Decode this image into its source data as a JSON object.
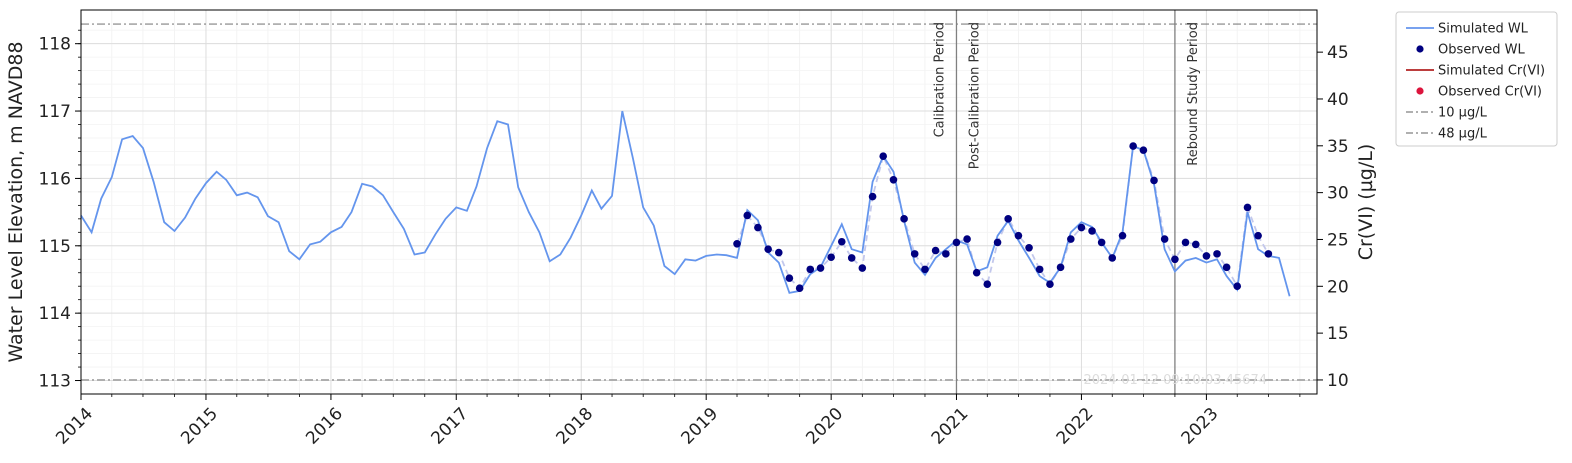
{
  "chart_data": {
    "type": "line",
    "y_left_label": "Water Level Elevation, m NAVD88",
    "y_right_label": "Cr(VI) (µg/L)",
    "x_range": [
      "2014-01-01",
      "2023-11-20"
    ],
    "x_ticks": [
      "2014",
      "2015",
      "2016",
      "2017",
      "2018",
      "2019",
      "2020",
      "2021",
      "2022",
      "2023"
    ],
    "y_left_range": [
      112.8,
      118.5
    ],
    "y_left_ticks": [
      "113",
      "114",
      "115",
      "116",
      "117",
      "118"
    ],
    "y_right_range": [
      8.5,
      49.5
    ],
    "y_right_ticks": [
      "10",
      "15",
      "20",
      "25",
      "30",
      "35",
      "40",
      "45"
    ],
    "grid": true,
    "legend_position": "outside-right",
    "series": [
      {
        "name": "Simulated WL",
        "kind": "line",
        "axis": "left",
        "color": "#6495ed",
        "points": [
          [
            "2014-01-01",
            115.45
          ],
          [
            "2014-02-01",
            115.2
          ],
          [
            "2014-03-01",
            115.7
          ],
          [
            "2014-04-01",
            116.02
          ],
          [
            "2014-05-01",
            116.58
          ],
          [
            "2014-06-01",
            116.63
          ],
          [
            "2014-07-01",
            116.45
          ],
          [
            "2014-08-01",
            115.95
          ],
          [
            "2014-09-01",
            115.35
          ],
          [
            "2014-10-01",
            115.22
          ],
          [
            "2014-11-01",
            115.42
          ],
          [
            "2014-12-01",
            115.7
          ],
          [
            "2015-01-01",
            115.93
          ],
          [
            "2015-02-01",
            116.1
          ],
          [
            "2015-03-01",
            115.98
          ],
          [
            "2015-04-01",
            115.75
          ],
          [
            "2015-05-01",
            115.79
          ],
          [
            "2015-06-01",
            115.72
          ],
          [
            "2015-07-01",
            115.44
          ],
          [
            "2015-08-01",
            115.35
          ],
          [
            "2015-09-01",
            114.92
          ],
          [
            "2015-10-01",
            114.8
          ],
          [
            "2015-11-01",
            115.02
          ],
          [
            "2015-12-01",
            115.06
          ],
          [
            "2016-01-01",
            115.2
          ],
          [
            "2016-02-01",
            115.28
          ],
          [
            "2016-03-01",
            115.5
          ],
          [
            "2016-04-01",
            115.92
          ],
          [
            "2016-05-01",
            115.88
          ],
          [
            "2016-06-01",
            115.75
          ],
          [
            "2016-07-01",
            115.5
          ],
          [
            "2016-08-01",
            115.25
          ],
          [
            "2016-09-01",
            114.87
          ],
          [
            "2016-10-01",
            114.9
          ],
          [
            "2016-11-01",
            115.17
          ],
          [
            "2016-12-01",
            115.4
          ],
          [
            "2017-01-01",
            115.57
          ],
          [
            "2017-02-01",
            115.52
          ],
          [
            "2017-03-01",
            115.88
          ],
          [
            "2017-04-01",
            116.45
          ],
          [
            "2017-05-01",
            116.85
          ],
          [
            "2017-06-01",
            116.8
          ],
          [
            "2017-07-01",
            115.87
          ],
          [
            "2017-08-01",
            115.5
          ],
          [
            "2017-09-01",
            115.2
          ],
          [
            "2017-10-01",
            114.77
          ],
          [
            "2017-11-01",
            114.87
          ],
          [
            "2017-12-01",
            115.12
          ],
          [
            "2018-01-01",
            115.45
          ],
          [
            "2018-02-01",
            115.82
          ],
          [
            "2018-03-01",
            115.55
          ],
          [
            "2018-04-01",
            115.74
          ],
          [
            "2018-05-01",
            117.0
          ],
          [
            "2018-06-01",
            116.3
          ],
          [
            "2018-07-01",
            115.57
          ],
          [
            "2018-08-01",
            115.3
          ],
          [
            "2018-09-01",
            114.7
          ],
          [
            "2018-10-01",
            114.58
          ],
          [
            "2018-11-01",
            114.8
          ],
          [
            "2018-12-01",
            114.78
          ],
          [
            "2019-01-01",
            114.85
          ],
          [
            "2019-02-01",
            114.87
          ],
          [
            "2019-03-01",
            114.86
          ],
          [
            "2019-04-01",
            114.82
          ],
          [
            "2019-05-01",
            115.53
          ],
          [
            "2019-06-01",
            115.38
          ],
          [
            "2019-07-01",
            114.9
          ],
          [
            "2019-08-01",
            114.75
          ],
          [
            "2019-09-01",
            114.3
          ],
          [
            "2019-10-01",
            114.33
          ],
          [
            "2019-11-01",
            114.58
          ],
          [
            "2019-12-01",
            114.68
          ],
          [
            "2020-01-01",
            115.0
          ],
          [
            "2020-02-01",
            115.32
          ],
          [
            "2020-03-01",
            114.95
          ],
          [
            "2020-04-01",
            114.9
          ],
          [
            "2020-05-01",
            115.95
          ],
          [
            "2020-06-01",
            116.33
          ],
          [
            "2020-07-01",
            116.1
          ],
          [
            "2020-08-01",
            115.37
          ],
          [
            "2020-09-01",
            114.75
          ],
          [
            "2020-10-01",
            114.57
          ],
          [
            "2020-11-01",
            114.82
          ],
          [
            "2020-12-01",
            114.95
          ],
          [
            "2021-01-01",
            115.08
          ],
          [
            "2021-02-01",
            115.02
          ],
          [
            "2021-03-01",
            114.62
          ],
          [
            "2021-04-01",
            114.68
          ],
          [
            "2021-05-01",
            115.15
          ],
          [
            "2021-06-01",
            115.37
          ],
          [
            "2021-07-01",
            115.08
          ],
          [
            "2021-08-01",
            114.82
          ],
          [
            "2021-09-01",
            114.55
          ],
          [
            "2021-10-01",
            114.45
          ],
          [
            "2021-11-01",
            114.68
          ],
          [
            "2021-12-01",
            115.2
          ],
          [
            "2022-01-01",
            115.35
          ],
          [
            "2022-02-01",
            115.28
          ],
          [
            "2022-03-01",
            115.05
          ],
          [
            "2022-04-01",
            114.82
          ],
          [
            "2022-05-01",
            115.2
          ],
          [
            "2022-06-01",
            116.48
          ],
          [
            "2022-07-01",
            116.42
          ],
          [
            "2022-08-01",
            115.92
          ],
          [
            "2022-09-01",
            114.95
          ],
          [
            "2022-10-01",
            114.62
          ],
          [
            "2022-11-01",
            114.78
          ],
          [
            "2022-12-01",
            114.82
          ],
          [
            "2023-01-01",
            114.75
          ],
          [
            "2023-02-01",
            114.8
          ],
          [
            "2023-03-01",
            114.55
          ],
          [
            "2023-04-01",
            114.35
          ],
          [
            "2023-05-01",
            115.5
          ],
          [
            "2023-06-01",
            114.95
          ],
          [
            "2023-07-01",
            114.85
          ],
          [
            "2023-08-01",
            114.82
          ],
          [
            "2023-09-01",
            114.25
          ]
        ]
      },
      {
        "name": "Observed WL",
        "kind": "scatter",
        "axis": "left",
        "color": "#000080",
        "points": [
          [
            "2019-04-01",
            115.03
          ],
          [
            "2019-05-01",
            115.45
          ],
          [
            "2019-06-01",
            115.27
          ],
          [
            "2019-07-01",
            114.95
          ],
          [
            "2019-08-01",
            114.9
          ],
          [
            "2019-09-01",
            114.52
          ],
          [
            "2019-10-01",
            114.37
          ],
          [
            "2019-11-01",
            114.65
          ],
          [
            "2019-12-01",
            114.67
          ],
          [
            "2020-01-01",
            114.83
          ],
          [
            "2020-02-01",
            115.06
          ],
          [
            "2020-03-01",
            114.82
          ],
          [
            "2020-04-01",
            114.67
          ],
          [
            "2020-05-01",
            115.73
          ],
          [
            "2020-06-01",
            116.33
          ],
          [
            "2020-07-01",
            115.98
          ],
          [
            "2020-08-01",
            115.4
          ],
          [
            "2020-09-01",
            114.88
          ],
          [
            "2020-10-01",
            114.65
          ],
          [
            "2020-11-01",
            114.93
          ],
          [
            "2020-12-01",
            114.88
          ],
          [
            "2021-01-01",
            115.05
          ],
          [
            "2021-02-01",
            115.1
          ],
          [
            "2021-03-01",
            114.6
          ],
          [
            "2021-04-01",
            114.43
          ],
          [
            "2021-05-01",
            115.05
          ],
          [
            "2021-06-01",
            115.4
          ],
          [
            "2021-07-01",
            115.15
          ],
          [
            "2021-08-01",
            114.97
          ],
          [
            "2021-09-01",
            114.65
          ],
          [
            "2021-10-01",
            114.43
          ],
          [
            "2021-11-01",
            114.68
          ],
          [
            "2021-12-01",
            115.1
          ],
          [
            "2022-01-01",
            115.27
          ],
          [
            "2022-02-01",
            115.22
          ],
          [
            "2022-03-01",
            115.05
          ],
          [
            "2022-04-01",
            114.82
          ],
          [
            "2022-05-01",
            115.15
          ],
          [
            "2022-06-01",
            116.48
          ],
          [
            "2022-07-01",
            116.42
          ],
          [
            "2022-08-01",
            115.97
          ],
          [
            "2022-09-01",
            115.1
          ],
          [
            "2022-10-01",
            114.8
          ],
          [
            "2022-11-01",
            115.05
          ],
          [
            "2022-12-01",
            115.02
          ],
          [
            "2023-01-01",
            114.85
          ],
          [
            "2023-02-01",
            114.88
          ],
          [
            "2023-03-01",
            114.68
          ],
          [
            "2023-04-01",
            114.4
          ],
          [
            "2023-05-01",
            115.57
          ],
          [
            "2023-06-01",
            115.15
          ],
          [
            "2023-07-01",
            114.88
          ]
        ]
      },
      {
        "name": "Simulated Cr(VI)",
        "kind": "line",
        "axis": "right",
        "color": "#b22222",
        "points": []
      },
      {
        "name": "Observed Cr(VI)",
        "kind": "scatter",
        "axis": "right",
        "color": "#dc143c",
        "points": []
      },
      {
        "name": "10 µg/L",
        "kind": "hline",
        "axis": "right",
        "value": 10,
        "color": "#808080"
      },
      {
        "name": "48 µg/L",
        "kind": "hline",
        "axis": "right",
        "value": 48,
        "color": "#808080"
      }
    ],
    "periods": [
      {
        "label": "Calibration Period",
        "date": "2021-01-01",
        "text_side": "left"
      },
      {
        "label": "Post-Calibration Period",
        "date": "2021-01-01",
        "text_side": "right"
      },
      {
        "label": "Rebound Study Period",
        "date": "2022-10-01",
        "text_side": "right"
      }
    ],
    "watermark": "2024-01-12 09:10:03.45674"
  }
}
